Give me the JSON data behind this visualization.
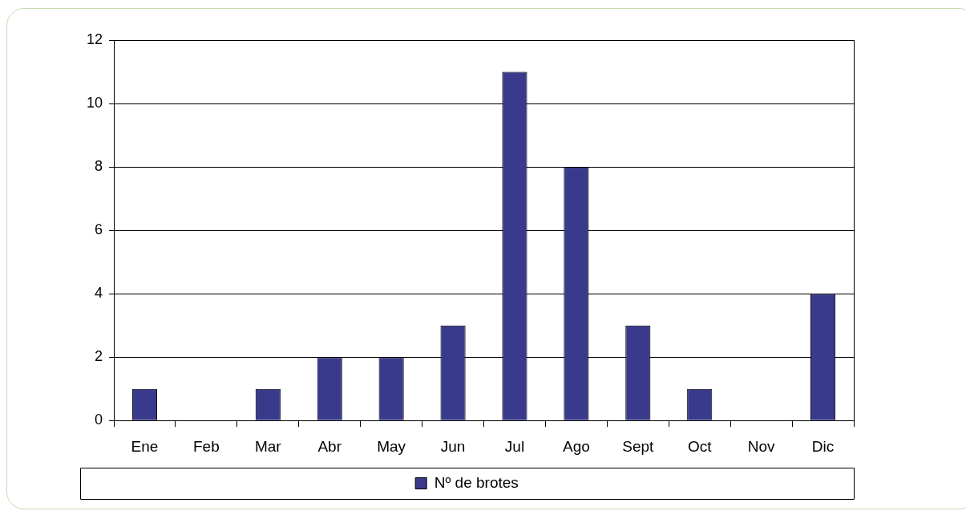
{
  "chart_data": {
    "type": "bar",
    "categories": [
      "Ene",
      "Feb",
      "Mar",
      "Abr",
      "May",
      "Jun",
      "Jul",
      "Ago",
      "Sept",
      "Oct",
      "Nov",
      "Dic"
    ],
    "series": [
      {
        "name": "Nº de brotes",
        "color": "#3a3a8c",
        "values": [
          1,
          0,
          1,
          2,
          2,
          3,
          11,
          8,
          3,
          1,
          0,
          4
        ]
      }
    ],
    "ylim": [
      0,
      12
    ],
    "yticks": [
      0,
      2,
      4,
      6,
      8,
      10,
      12
    ],
    "grid": "y",
    "legend": "bottom"
  }
}
